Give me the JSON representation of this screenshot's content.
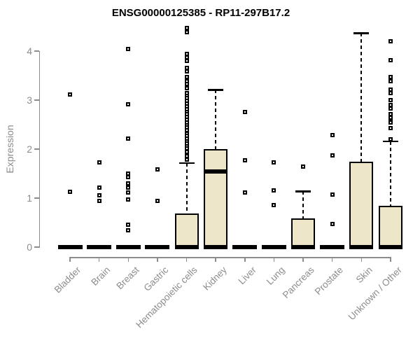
{
  "page": {
    "background": "#ffffff"
  },
  "colors": {
    "axis": "#8c8c8c",
    "tick_label": "#8c8c8c",
    "box_fill": "#EDE6C8",
    "box_border": "#000000",
    "median": "#000000",
    "whisker": "#000000",
    "outlier": "#000000",
    "title": "#000000"
  },
  "chart_data": {
    "type": "boxplot",
    "title": "ENSG00000125385 - RP11-297B17.2",
    "ylabel": "Expression",
    "xlabel": "",
    "ylim": [
      0,
      4.5
    ],
    "yticks": [
      0,
      1,
      2,
      3,
      4
    ],
    "grid": false,
    "legend": null,
    "categories": [
      "Bladder",
      "Brain",
      "Breast",
      "Gastric",
      "Hematopoietic cells",
      "Kidney",
      "Liver",
      "Lung",
      "Pancreas",
      "Prostate",
      "Skin",
      "Unknown / Other"
    ],
    "boxes": [
      {
        "category": "Bladder",
        "q1": 0,
        "median": 0,
        "q3": 0,
        "whisker_low": 0,
        "whisker_high": 0,
        "outliers": [
          3.11,
          1.13
        ]
      },
      {
        "category": "Brain",
        "q1": 0,
        "median": 0,
        "q3": 0,
        "whisker_low": 0,
        "whisker_high": 0,
        "outliers": [
          1.73,
          1.21,
          1.06,
          0.94
        ]
      },
      {
        "category": "Breast",
        "q1": 0,
        "median": 0,
        "q3": 0,
        "whisker_low": 0,
        "whisker_high": 0,
        "outliers": [
          4.04,
          2.91,
          2.21,
          1.5,
          1.43,
          1.3,
          1.21,
          1.11,
          0.97,
          0.46,
          0.34
        ]
      },
      {
        "category": "Gastric",
        "q1": 0,
        "median": 0,
        "q3": 0,
        "whisker_low": 0,
        "whisker_high": 0,
        "outliers": [
          1.59,
          0.94
        ]
      },
      {
        "category": "Hematopoietic cells",
        "q1": 0,
        "median": 0,
        "q3": 0.68,
        "whisker_low": 0,
        "whisker_high": 1.72,
        "outliers": [
          4.47,
          4.38,
          3.94,
          3.87,
          3.8,
          3.66,
          3.58,
          3.47,
          3.39,
          3.33,
          3.24,
          3.14,
          3.09,
          3.04,
          2.99,
          2.93,
          2.87,
          2.81,
          2.76,
          2.71,
          2.66,
          2.6,
          2.54,
          2.49,
          2.44,
          2.38,
          2.32,
          2.27,
          2.21,
          2.16,
          2.11,
          2.06,
          2.01,
          1.94,
          1.86,
          1.79
        ]
      },
      {
        "category": "Kidney",
        "q1": 0,
        "median": 1.55,
        "q3": 2.0,
        "whisker_low": 0,
        "whisker_high": 3.21,
        "outliers": [],
        "bottom_bar": true
      },
      {
        "category": "Liver",
        "q1": 0,
        "median": 0,
        "q3": 0,
        "whisker_low": 0,
        "whisker_high": 0,
        "outliers": [
          2.76,
          1.77,
          1.11
        ]
      },
      {
        "category": "Lung",
        "q1": 0,
        "median": 0,
        "q3": 0,
        "whisker_low": 0,
        "whisker_high": 0,
        "outliers": [
          1.73,
          1.16,
          0.86
        ]
      },
      {
        "category": "Pancreas",
        "q1": 0,
        "median": 0,
        "q3": 0.59,
        "whisker_low": 0,
        "whisker_high": 1.14,
        "outliers": [
          1.65
        ]
      },
      {
        "category": "Prostate",
        "q1": 0,
        "median": 0,
        "q3": 0,
        "whisker_low": 0,
        "whisker_high": 0,
        "outliers": [
          2.29,
          1.87,
          1.07,
          0.47
        ]
      },
      {
        "category": "Skin",
        "q1": 0,
        "median": 0,
        "q3": 1.74,
        "whisker_low": 0,
        "whisker_high": 4.37,
        "outliers": []
      },
      {
        "category": "Unknown / Other",
        "q1": 0,
        "median": 0,
        "q3": 0.84,
        "whisker_low": 0,
        "whisker_high": 2.16,
        "outliers": [
          4.2,
          3.81,
          3.47,
          3.39,
          3.21,
          3.14,
          3.0,
          2.9,
          2.83,
          2.71,
          2.64,
          2.57,
          2.54,
          2.43,
          2.2
        ]
      }
    ]
  }
}
